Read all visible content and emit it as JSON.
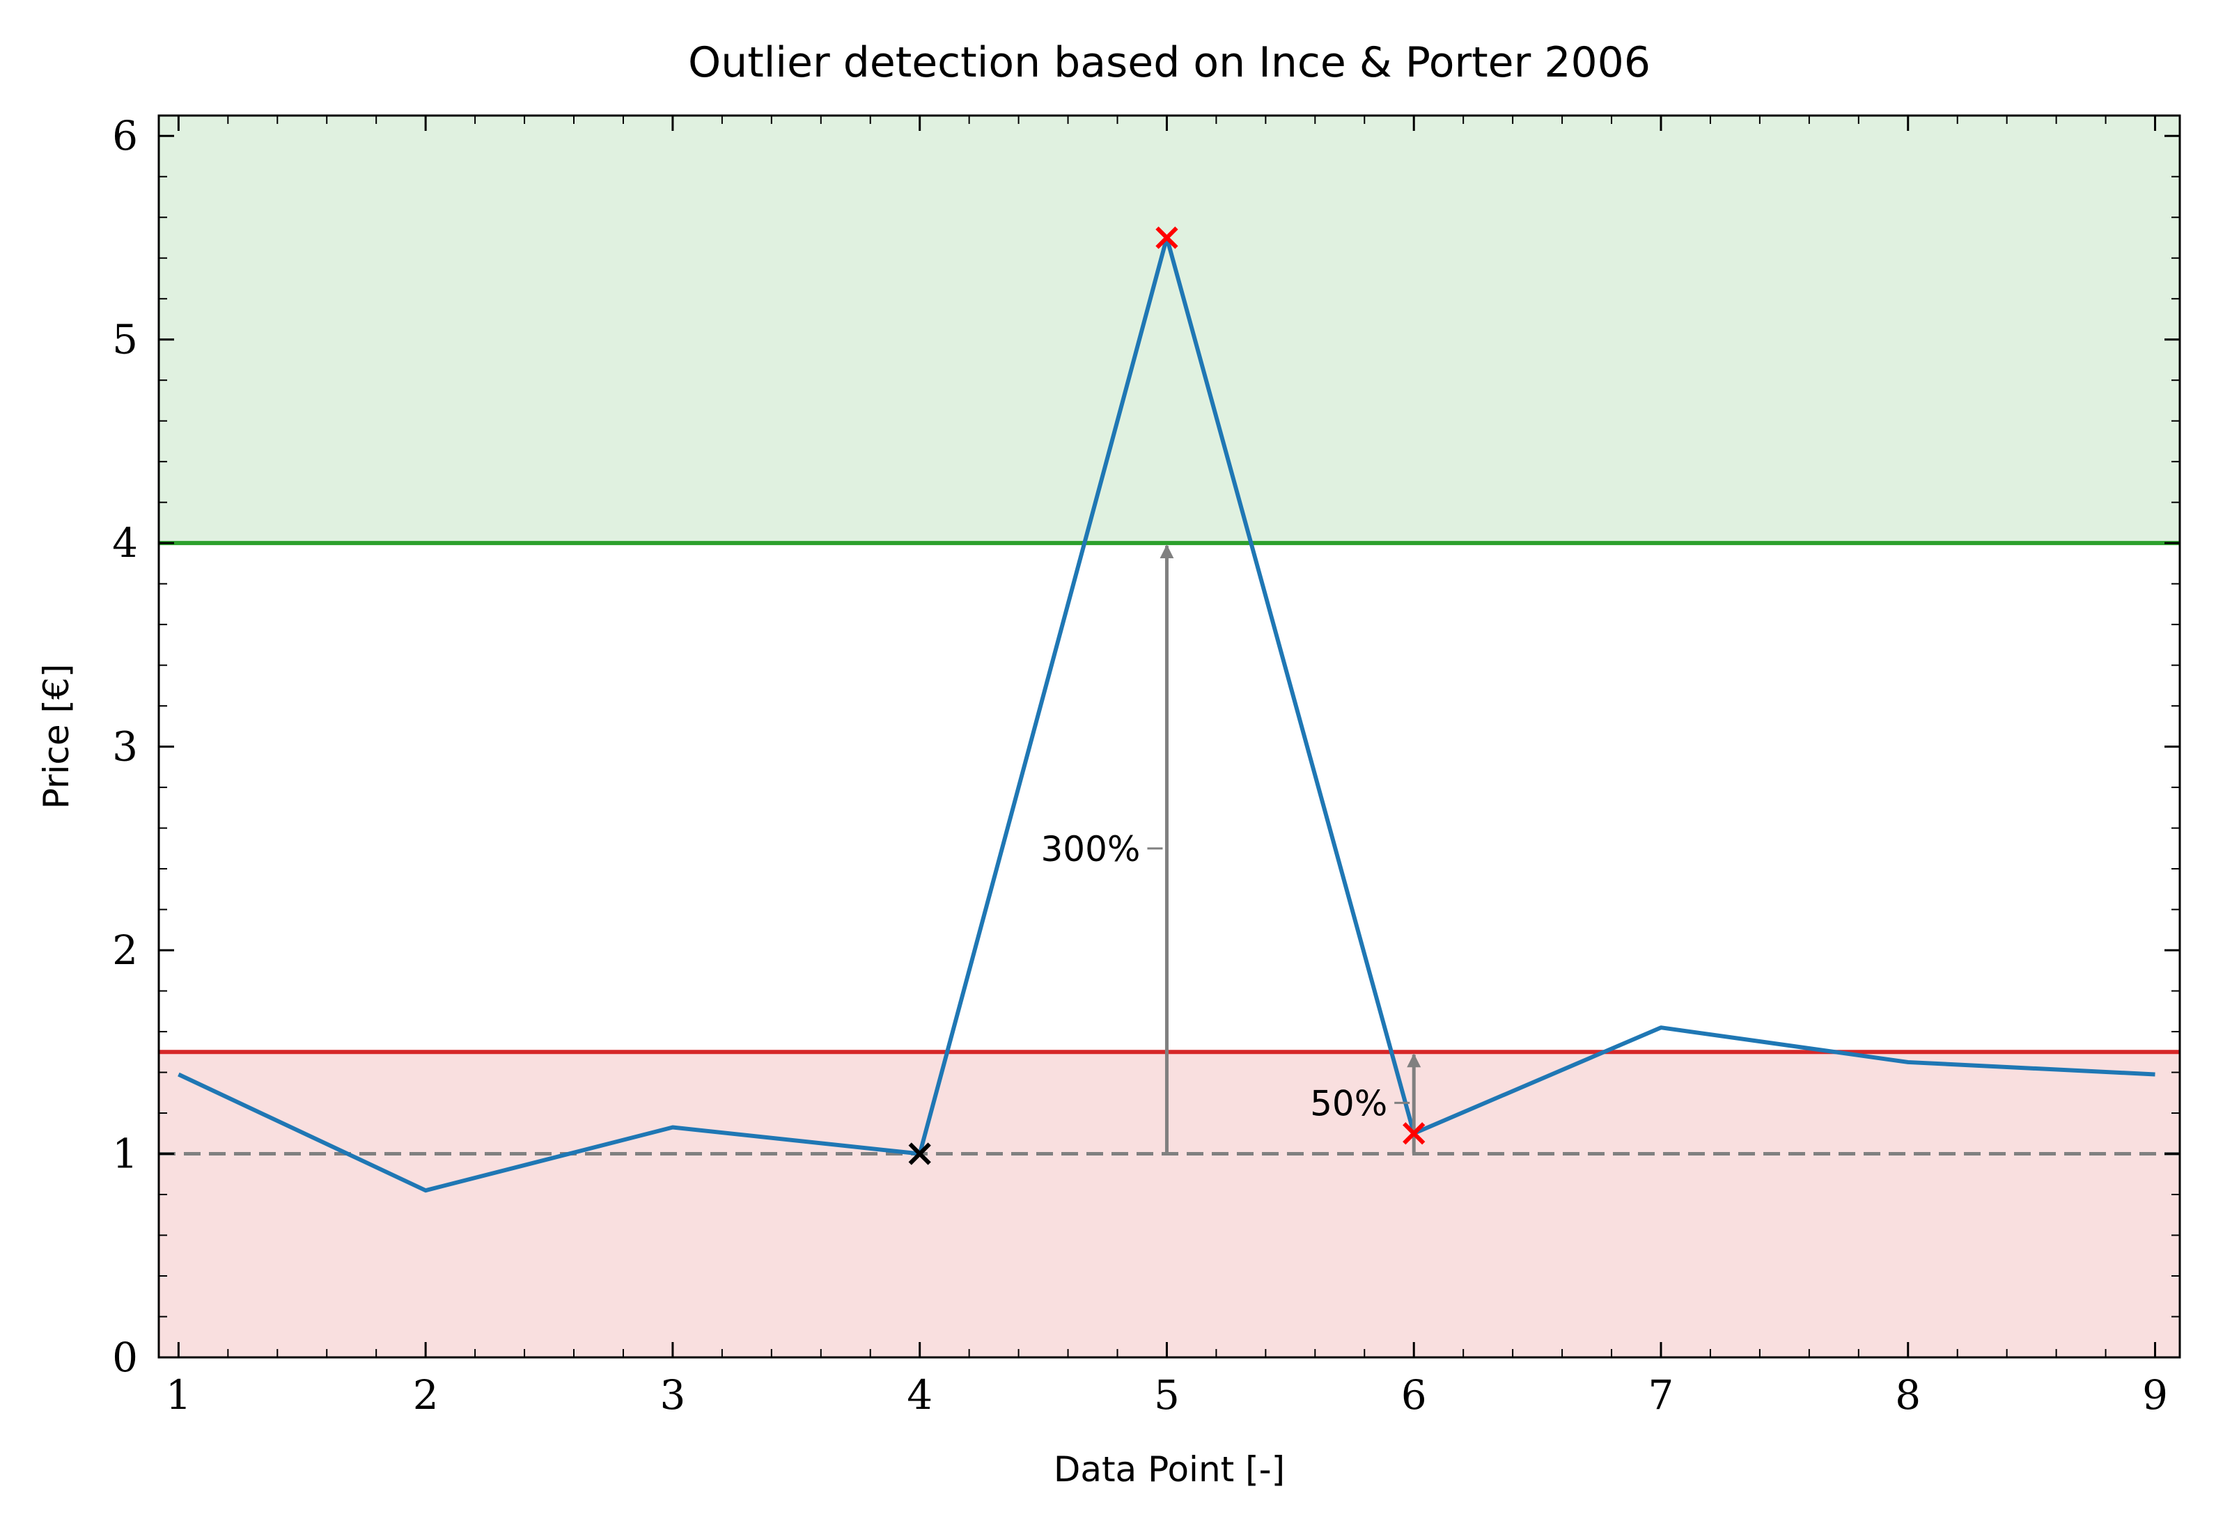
{
  "chart_data": {
    "type": "line",
    "title": "Outlier detection based on Ince & Porter 2006",
    "xlabel": "Data Point [-]",
    "ylabel": "Price [€]",
    "xlim": [
      0.92,
      9.1
    ],
    "ylim": [
      0,
      6.1
    ],
    "x_ticks": [
      1,
      2,
      3,
      4,
      5,
      6,
      7,
      8,
      9
    ],
    "y_ticks": [
      0,
      1,
      2,
      3,
      4,
      5,
      6
    ],
    "x_minor_step": 0.2,
    "y_minor_step": 0.2,
    "grid": false,
    "series": [
      {
        "x": [
          1,
          2,
          3,
          4,
          5,
          6,
          7,
          8,
          9
        ],
        "values": [
          1.39,
          0.82,
          1.13,
          1.0,
          5.5,
          1.1,
          1.62,
          1.45,
          1.39
        ],
        "color": "#1f77b4"
      }
    ],
    "bands": [
      {
        "y0": 4.0,
        "y1": 6.1,
        "color": "#2ca02c",
        "opacity": 0.15
      },
      {
        "y0": 0.0,
        "y1": 1.5,
        "color": "#d62728",
        "opacity": 0.15
      }
    ],
    "hlines": [
      {
        "y": 4.0,
        "color": "#2ca02c",
        "style": "solid"
      },
      {
        "y": 1.5,
        "color": "#d62728",
        "style": "solid"
      },
      {
        "y": 1.0,
        "color": "#808080",
        "style": "dashed"
      }
    ],
    "markers": [
      {
        "x": 4,
        "y": 1.0,
        "color": "#000000",
        "symbol": "x"
      },
      {
        "x": 5,
        "y": 5.5,
        "color": "#ff0000",
        "symbol": "x"
      },
      {
        "x": 6,
        "y": 1.1,
        "color": "#ff0000",
        "symbol": "x"
      }
    ],
    "annotations": [
      {
        "text": "300%",
        "x": 5,
        "y_from": 1.0,
        "y_to": 4.0,
        "label_y": 2.5
      },
      {
        "text": "50%",
        "x": 6,
        "y_from": 1.0,
        "y_to": 1.5,
        "label_y": 1.25
      }
    ]
  }
}
